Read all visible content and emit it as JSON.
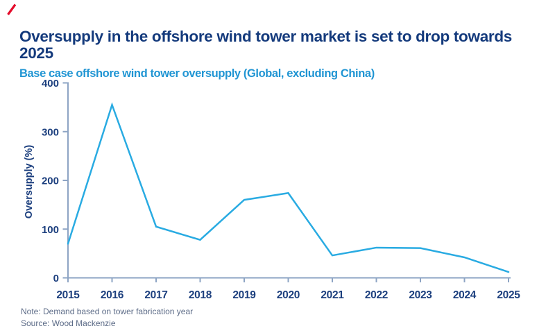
{
  "brand": {
    "slash_color": "#e40c2b"
  },
  "header": {
    "title_lines": [
      "Oversupply in the offshore wind tower market is set to drop towards",
      "2025"
    ],
    "title_full": "Oversupply in the offshore wind tower market is set to drop towards 2025",
    "subtitle": "Base case offshore wind tower oversupply (Global, excluding China)",
    "title_color": "#143a7c",
    "subtitle_color": "#2095d3"
  },
  "chart_data": {
    "type": "line",
    "title": "Base case offshore wind tower oversupply (Global, excluding China)",
    "x": [
      2015,
      2016,
      2017,
      2018,
      2019,
      2020,
      2021,
      2022,
      2023,
      2024,
      2025
    ],
    "values": [
      70,
      355,
      105,
      78,
      160,
      174,
      46,
      62,
      61,
      42,
      12
    ],
    "xlabel": "",
    "ylabel": "Oversupply (%)",
    "ylim": [
      0,
      400
    ],
    "yticks": [
      0,
      100,
      200,
      300,
      400
    ],
    "grid": false,
    "legend_position": "none",
    "line_color": "#29abe2",
    "axis_color": "#8da4c4",
    "tick_label_color": "#1c3f7e"
  },
  "footer": {
    "note": "Note: Demand based on tower fabrication year",
    "source": "Source: Wood Mackenzie",
    "text_color": "#5c6b87"
  }
}
